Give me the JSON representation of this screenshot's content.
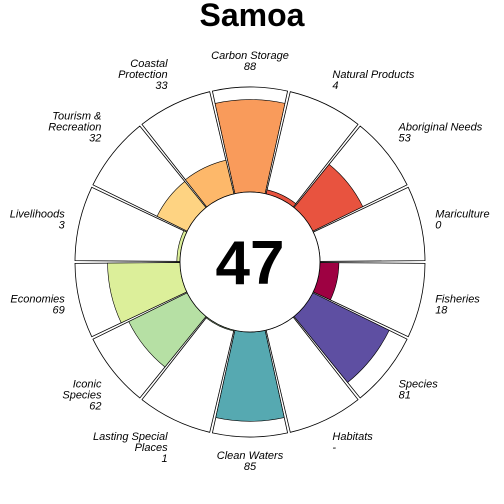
{
  "chart_data": {
    "type": "flower",
    "title": "Samoa",
    "score": "47",
    "ylim": [
      0,
      100
    ],
    "goals": [
      {
        "label": [
          "Carbon Storage"
        ],
        "value_label": "88",
        "value": 88,
        "color": "#f99b5b"
      },
      {
        "label": [
          "Natural Products"
        ],
        "value_label": "4",
        "value": 4,
        "color": "#e8533f"
      },
      {
        "label": [
          "Aboriginal Needs"
        ],
        "value_label": "53",
        "value": 53,
        "color": "#e8533f"
      },
      {
        "label": [
          "Mariculture"
        ],
        "value_label": "0",
        "value": 0,
        "color": "#9e0142"
      },
      {
        "label": [
          "Fisheries"
        ],
        "value_label": "18",
        "value": 18,
        "color": "#9e0142"
      },
      {
        "label": [
          "Species"
        ],
        "value_label": "81",
        "value": 81,
        "color": "#5e4fa2"
      },
      {
        "label": [
          "Habitats"
        ],
        "value_label": "-",
        "value": null,
        "color": "#5e4fa2"
      },
      {
        "label": [
          "Clean Waters"
        ],
        "value_label": "85",
        "value": 85,
        "color": "#56a9b1"
      },
      {
        "label": [
          "Lasting Special",
          "Places"
        ],
        "value_label": "1",
        "value": 1,
        "color": "#b6e0a4"
      },
      {
        "label": [
          "Iconic",
          "Species"
        ],
        "value_label": "62",
        "value": 62,
        "color": "#b6e0a4"
      },
      {
        "label": [
          "Economies"
        ],
        "value_label": "69",
        "value": 69,
        "color": "#dcef9a"
      },
      {
        "label": [
          "Livelihoods"
        ],
        "value_label": "3",
        "value": 3,
        "color": "#dcef9a"
      },
      {
        "label": [
          "Tourism &",
          "Recreation"
        ],
        "value_label": "32",
        "value": 32,
        "color": "#fed382"
      },
      {
        "label": [
          "Coastal",
          "Protection"
        ],
        "value_label": "33",
        "value": 33,
        "color": "#fdb86a"
      }
    ]
  }
}
